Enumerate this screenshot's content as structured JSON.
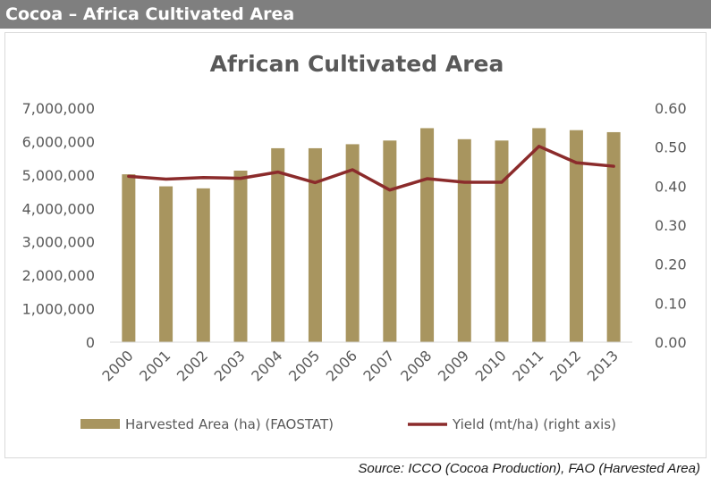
{
  "header": {
    "title": "Cocoa – Africa Cultivated Area"
  },
  "source": "Source: ICCO (Cocoa Production), FAO (Harvested Area)",
  "colors": {
    "bar": "#a8955f",
    "line": "#8b2b2b",
    "axis": "#d9d9d9",
    "text": "#595959"
  },
  "chart_data": {
    "type": "bar",
    "title": "African Cultivated Area",
    "categories": [
      "2000",
      "2001",
      "2002",
      "2003",
      "2004",
      "2005",
      "2006",
      "2007",
      "2008",
      "2009",
      "2010",
      "2011",
      "2012",
      "2013"
    ],
    "series": [
      {
        "name": "Harvested Area (ha) (FAOSTAT)",
        "type": "bar",
        "axis": "left",
        "values": [
          5020000,
          4660000,
          4600000,
          5130000,
          5800000,
          5800000,
          5920000,
          6030000,
          6400000,
          6070000,
          6030000,
          6400000,
          6340000,
          6280000
        ]
      },
      {
        "name": "Yield (mt/ha) (right axis)",
        "type": "line",
        "axis": "right",
        "values": [
          0.425,
          0.418,
          0.422,
          0.42,
          0.436,
          0.409,
          0.442,
          0.39,
          0.419,
          0.41,
          0.41,
          0.502,
          0.46,
          0.451
        ]
      }
    ],
    "y_left": {
      "min": 0,
      "max": 7000000,
      "ticks": [
        "0",
        "1,000,000",
        "2,000,000",
        "3,000,000",
        "4,000,000",
        "5,000,000",
        "6,000,000",
        "7,000,000"
      ]
    },
    "y_right": {
      "min": 0,
      "max": 0.6,
      "ticks": [
        "0.00",
        "0.10",
        "0.20",
        "0.30",
        "0.40",
        "0.50",
        "0.60"
      ]
    },
    "legend_position": "bottom",
    "grid": false
  }
}
